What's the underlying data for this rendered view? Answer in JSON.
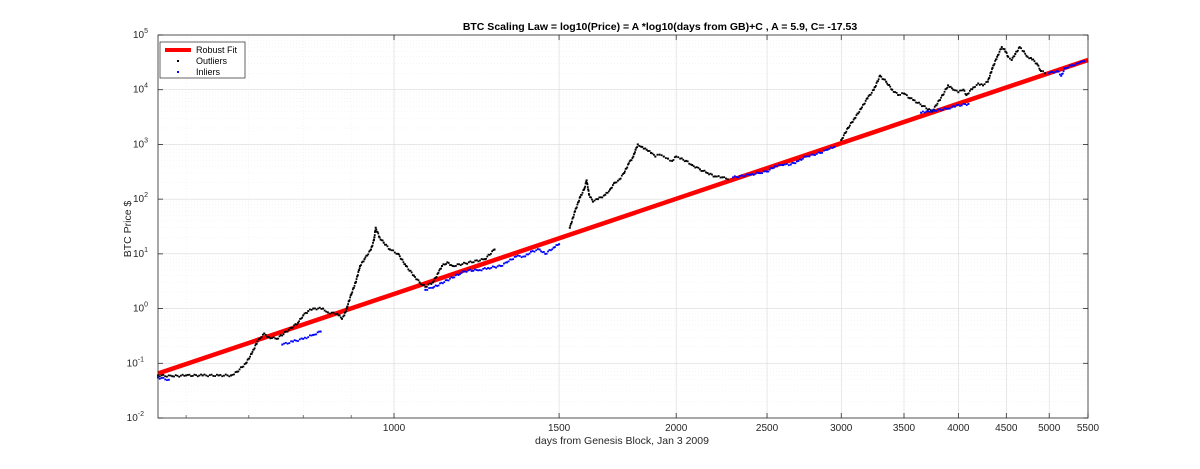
{
  "chart_data": {
    "type": "scatter",
    "title": "BTC Scaling Law = log10(Price) = A *log10(days from GB)+C , A = 5.9, C= -17.53",
    "xlabel": "days from Genesis Block, Jan 3 2009",
    "ylabel": "BTC Price $",
    "x_scale": "log",
    "y_scale": "log",
    "xlim": [
      560,
      5500
    ],
    "ylim": [
      0.01,
      100000
    ],
    "grid": true,
    "legend_position": "top-left",
    "x_ticks": [
      {
        "value": 1000,
        "label": "1000"
      },
      {
        "value": 1500,
        "label": "1500"
      },
      {
        "value": 2000,
        "label": "2000"
      },
      {
        "value": 2500,
        "label": "2500"
      },
      {
        "value": 3000,
        "label": "3000"
      },
      {
        "value": 3500,
        "label": "3500"
      },
      {
        "value": 4000,
        "label": "4000"
      },
      {
        "value": 4500,
        "label": "4500"
      },
      {
        "value": 5000,
        "label": "5000"
      },
      {
        "value": 5500,
        "label": "5500"
      }
    ],
    "x_minor_ticks": [
      600,
      700,
      800,
      900
    ],
    "y_ticks": [
      {
        "value": 0.01,
        "base": "10",
        "exp": "-2"
      },
      {
        "value": 0.1,
        "base": "10",
        "exp": "-1"
      },
      {
        "value": 1,
        "base": "10",
        "exp": "0"
      },
      {
        "value": 10,
        "base": "10",
        "exp": "1"
      },
      {
        "value": 100,
        "base": "10",
        "exp": "2"
      },
      {
        "value": 1000,
        "base": "10",
        "exp": "3"
      },
      {
        "value": 10000,
        "base": "10",
        "exp": "4"
      },
      {
        "value": 100000,
        "base": "10",
        "exp": "5"
      }
    ],
    "fit": {
      "A": 5.9,
      "C": -17.53
    },
    "series": [
      {
        "name": "Robust Fit",
        "kind": "line",
        "color": "#ff0000",
        "points": [
          [
            560,
            0.065
          ],
          [
            5500,
            35000
          ]
        ]
      },
      {
        "name": "Outliers",
        "kind": "scatter",
        "color": "#000000",
        "points": [
          [
            560,
            0.06
          ],
          [
            580,
            0.058
          ],
          [
            600,
            0.06
          ],
          [
            625,
            0.06
          ],
          [
            650,
            0.06
          ],
          [
            670,
            0.06
          ],
          [
            680,
            0.07
          ],
          [
            695,
            0.1
          ],
          [
            705,
            0.15
          ],
          [
            715,
            0.25
          ],
          [
            722,
            0.3
          ],
          [
            727,
            0.35
          ],
          [
            735,
            0.3
          ],
          [
            750,
            0.28
          ],
          [
            790,
            0.55
          ],
          [
            800,
            0.75
          ],
          [
            810,
            0.9
          ],
          [
            820,
            1.0
          ],
          [
            840,
            1.0
          ],
          [
            850,
            0.85
          ],
          [
            870,
            0.8
          ],
          [
            880,
            0.65
          ],
          [
            885,
            0.75
          ],
          [
            890,
            1.0
          ],
          [
            900,
            1.8
          ],
          [
            910,
            3.0
          ],
          [
            920,
            6.0
          ],
          [
            930,
            8.0
          ],
          [
            945,
            12.0
          ],
          [
            952,
            18.0
          ],
          [
            956,
            30.0
          ],
          [
            965,
            20.0
          ],
          [
            975,
            16.0
          ],
          [
            990,
            12.0
          ],
          [
            1010,
            10.0
          ],
          [
            1030,
            6.0
          ],
          [
            1050,
            4.0
          ],
          [
            1065,
            3.0
          ],
          [
            1080,
            2.5
          ],
          [
            1100,
            3.0
          ],
          [
            1115,
            4.5
          ],
          [
            1125,
            6.0
          ],
          [
            1140,
            7.0
          ],
          [
            1155,
            6.0
          ],
          [
            1250,
            8.0
          ],
          [
            1280,
            12.0
          ],
          [
            1540,
            30.0
          ],
          [
            1560,
            60.0
          ],
          [
            1580,
            110.0
          ],
          [
            1595,
            150.0
          ],
          [
            1605,
            220.0
          ],
          [
            1615,
            120.0
          ],
          [
            1630,
            90.0
          ],
          [
            1650,
            100.0
          ],
          [
            1680,
            120.0
          ],
          [
            1700,
            150.0
          ],
          [
            1720,
            200.0
          ],
          [
            1740,
            230.0
          ],
          [
            1760,
            300.0
          ],
          [
            1780,
            450.0
          ],
          [
            1800,
            600.0
          ],
          [
            1810,
            800.0
          ],
          [
            1820,
            1000.0
          ],
          [
            1840,
            900.0
          ],
          [
            1860,
            800.0
          ],
          [
            1880,
            700.0
          ],
          [
            1900,
            600.0
          ],
          [
            1920,
            650.0
          ],
          [
            1940,
            600.0
          ],
          [
            1960,
            550.0
          ],
          [
            1980,
            500.0
          ],
          [
            2000,
            600.0
          ],
          [
            2020,
            550.0
          ],
          [
            2050,
            500.0
          ],
          [
            2080,
            420.0
          ],
          [
            2120,
            350.0
          ],
          [
            2160,
            300.0
          ],
          [
            2200,
            260.0
          ],
          [
            2240,
            250.0
          ],
          [
            2270,
            230.0
          ],
          [
            3000,
            1200.0
          ],
          [
            3050,
            2000.0
          ],
          [
            3100,
            3000.0
          ],
          [
            3150,
            4500.0
          ],
          [
            3200,
            7000.0
          ],
          [
            3250,
            10000.0
          ],
          [
            3300,
            18000.0
          ],
          [
            3350,
            14000.0
          ],
          [
            3400,
            10000.0
          ],
          [
            3450,
            8000.0
          ],
          [
            3500,
            8500.0
          ],
          [
            3550,
            7000.0
          ],
          [
            3580,
            6500.0
          ],
          [
            3750,
            4000.0
          ],
          [
            3850,
            8000.0
          ],
          [
            3900,
            12000.0
          ],
          [
            3950,
            10000.0
          ],
          [
            4000,
            9000.0
          ],
          [
            4050,
            10000.0
          ],
          [
            4080,
            8000.0
          ],
          [
            4150,
            11000.0
          ],
          [
            4200,
            13000.0
          ],
          [
            4250,
            12000.0
          ],
          [
            4300,
            14000.0
          ],
          [
            4350,
            25000.0
          ],
          [
            4400,
            40000.0
          ],
          [
            4450,
            60000.0
          ],
          [
            4480,
            55000.0
          ],
          [
            4520,
            40000.0
          ],
          [
            4560,
            35000.0
          ],
          [
            4600,
            45000.0
          ],
          [
            4650,
            60000.0
          ],
          [
            4700,
            50000.0
          ],
          [
            4740,
            40000.0
          ],
          [
            4780,
            38000.0
          ],
          [
            4850,
            30000.0
          ],
          [
            4900,
            22000.0
          ],
          [
            4950,
            20000.0
          ]
        ]
      },
      {
        "name": "Inliers",
        "kind": "scatter",
        "color": "#0000ff",
        "points": [
          [
            560,
            0.055
          ],
          [
            575,
            0.05
          ],
          [
            760,
            0.22
          ],
          [
            780,
            0.25
          ],
          [
            800,
            0.28
          ],
          [
            820,
            0.33
          ],
          [
            835,
            0.38
          ],
          [
            1080,
            2.2
          ],
          [
            1100,
            2.4
          ],
          [
            1180,
            4.5
          ],
          [
            1200,
            5.0
          ],
          [
            1230,
            5.0
          ],
          [
            1260,
            5.5
          ],
          [
            1300,
            6.0
          ],
          [
            1320,
            7.0
          ],
          [
            1350,
            9.0
          ],
          [
            1380,
            9.0
          ],
          [
            1400,
            11.0
          ],
          [
            1430,
            12.0
          ],
          [
            1450,
            10.0
          ],
          [
            1480,
            13.0
          ],
          [
            1500,
            15.0
          ],
          [
            2300,
            250.0
          ],
          [
            2400,
            280.0
          ],
          [
            2450,
            300.0
          ],
          [
            2500,
            320.0
          ],
          [
            2550,
            400.0
          ],
          [
            2600,
            420.0
          ],
          [
            2650,
            430.0
          ],
          [
            2700,
            500.0
          ],
          [
            2750,
            600.0
          ],
          [
            2800,
            650.0
          ],
          [
            2850,
            700.0
          ],
          [
            2900,
            800.0
          ],
          [
            2950,
            900.0
          ],
          [
            3650,
            3800.0
          ],
          [
            3700,
            4000.0
          ],
          [
            3900,
            4500.0
          ],
          [
            3950,
            5000.0
          ],
          [
            4100,
            5500.0
          ],
          [
            5000,
            20000.0
          ],
          [
            5100,
            22000.0
          ],
          [
            5150,
            18000.0
          ],
          [
            5200,
            25000.0
          ],
          [
            5300,
            28000.0
          ],
          [
            5350,
            30000.0
          ],
          [
            5400,
            32000.0
          ],
          [
            5450,
            33000.0
          ]
        ]
      }
    ]
  }
}
